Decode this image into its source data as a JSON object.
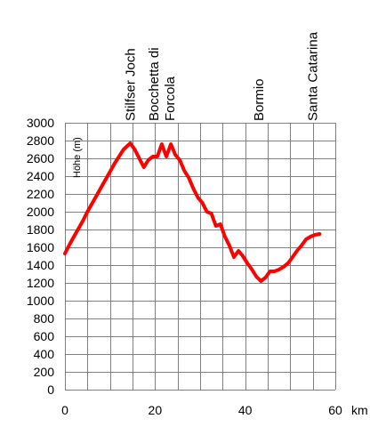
{
  "chart_data": {
    "type": "line",
    "title": "",
    "xlabel": "",
    "xunit": "km",
    "ylabel": "Höhe (m)",
    "xlim": [
      0,
      60
    ],
    "ylim": [
      0,
      3000
    ],
    "x_ticks": [
      0,
      20,
      40,
      60
    ],
    "y_ticks": [
      0,
      200,
      400,
      600,
      800,
      1000,
      1200,
      1400,
      1600,
      1800,
      2000,
      2200,
      2400,
      2600,
      2800,
      3000
    ],
    "x_grid_step": 5,
    "grid": true,
    "line_color": "#ff0000",
    "places": [
      {
        "lines": [
          "Stilfser Joch"
        ],
        "x": 14.5
      },
      {
        "lines": [
          "Bocchetta di",
          "Forcola"
        ],
        "x": 21.5
      },
      {
        "lines": [
          "Bormio"
        ],
        "x": 43
      },
      {
        "lines": [
          "Santa Catarina"
        ],
        "x": 55
      }
    ],
    "series": [
      {
        "points": [
          [
            0,
            1530
          ],
          [
            1,
            1630
          ],
          [
            2,
            1720
          ],
          [
            3,
            1810
          ],
          [
            4,
            1900
          ],
          [
            5,
            2000
          ],
          [
            6,
            2090
          ],
          [
            7,
            2180
          ],
          [
            8,
            2270
          ],
          [
            9,
            2360
          ],
          [
            10,
            2450
          ],
          [
            11,
            2540
          ],
          [
            12,
            2620
          ],
          [
            13,
            2700
          ],
          [
            14.5,
            2770
          ],
          [
            15.5,
            2700
          ],
          [
            16.5,
            2600
          ],
          [
            17.5,
            2500
          ],
          [
            18.5,
            2580
          ],
          [
            19.5,
            2620
          ],
          [
            20.5,
            2620
          ],
          [
            21.5,
            2760
          ],
          [
            22.5,
            2620
          ],
          [
            23.5,
            2760
          ],
          [
            24.5,
            2640
          ],
          [
            25.5,
            2580
          ],
          [
            26.5,
            2460
          ],
          [
            27.5,
            2380
          ],
          [
            28.5,
            2260
          ],
          [
            29.5,
            2160
          ],
          [
            30.5,
            2100
          ],
          [
            31.5,
            2000
          ],
          [
            32.5,
            1980
          ],
          [
            33.5,
            1840
          ],
          [
            34.5,
            1860
          ],
          [
            35.5,
            1720
          ],
          [
            36.5,
            1620
          ],
          [
            37.5,
            1490
          ],
          [
            38.5,
            1560
          ],
          [
            39.5,
            1500
          ],
          [
            40.5,
            1420
          ],
          [
            41.5,
            1350
          ],
          [
            42.5,
            1270
          ],
          [
            43.5,
            1220
          ],
          [
            44.5,
            1260
          ],
          [
            45.5,
            1330
          ],
          [
            46.5,
            1330
          ],
          [
            47.5,
            1350
          ],
          [
            48.5,
            1380
          ],
          [
            49.5,
            1420
          ],
          [
            50.5,
            1490
          ],
          [
            51.5,
            1560
          ],
          [
            52.5,
            1620
          ],
          [
            53.5,
            1690
          ],
          [
            54.5,
            1720
          ],
          [
            55.5,
            1740
          ],
          [
            56.5,
            1750
          ]
        ]
      }
    ]
  }
}
